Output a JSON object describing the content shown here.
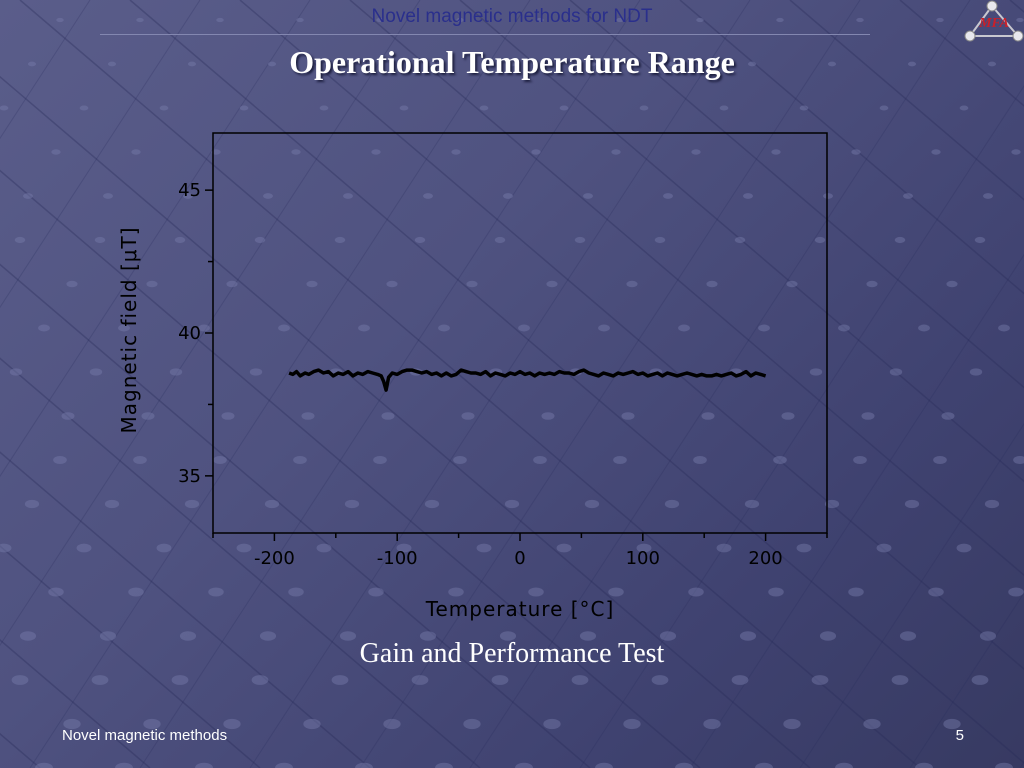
{
  "header": {
    "title": "Novel magnetic methods for NDT",
    "logo_text": "MFA"
  },
  "slide": {
    "title": "Operational Temperature Range",
    "caption": "Gain and Performance Test"
  },
  "footer": {
    "left": "Novel magnetic methods",
    "page_number": "5"
  },
  "colors": {
    "accent": "#2a2f8c",
    "line": "#000000",
    "logo_red": "#c8202a"
  },
  "chart_data": {
    "type": "line",
    "title": "",
    "xlabel": "Temperature [°C]",
    "ylabel": "Magnetic  field    [μT]",
    "xlim": [
      -250,
      250
    ],
    "ylim": [
      33,
      47
    ],
    "xticks": [
      -200,
      -100,
      0,
      100,
      200
    ],
    "xtick_labels": [
      "-200",
      "-100",
      "0",
      "100",
      "200"
    ],
    "yticks": [
      35,
      40,
      45
    ],
    "ytick_labels": [
      "35",
      "40",
      "45"
    ],
    "grid": false,
    "series": [
      {
        "x": [
          -188,
          -185,
          -182,
          -179,
          -175,
          -172,
          -168,
          -164,
          -160,
          -156,
          -152,
          -148,
          -144,
          -140,
          -136,
          -132,
          -128,
          -124,
          -120,
          -116,
          -113,
          -111,
          -109,
          -107,
          -104,
          -100,
          -96,
          -92,
          -88,
          -84,
          -80,
          -76,
          -72,
          -68,
          -64,
          -60,
          -56,
          -52,
          -48,
          -44,
          -40,
          -36,
          -32,
          -28,
          -24,
          -20,
          -16,
          -12,
          -8,
          -4,
          0,
          4,
          8,
          12,
          16,
          20,
          24,
          28,
          32,
          36,
          40,
          44,
          48,
          52,
          56,
          60,
          64,
          68,
          72,
          76,
          80,
          84,
          88,
          92,
          96,
          100,
          104,
          108,
          112,
          116,
          120,
          124,
          128,
          132,
          136,
          140,
          144,
          148,
          152,
          156,
          160,
          164,
          168,
          172,
          176,
          180,
          184,
          188,
          192,
          196,
          200
        ],
        "y": [
          38.6,
          38.55,
          38.65,
          38.5,
          38.6,
          38.55,
          38.65,
          38.7,
          38.6,
          38.65,
          38.5,
          38.6,
          38.55,
          38.65,
          38.5,
          38.6,
          38.55,
          38.65,
          38.6,
          38.55,
          38.5,
          38.3,
          38.0,
          38.45,
          38.6,
          38.55,
          38.65,
          38.7,
          38.7,
          38.65,
          38.6,
          38.65,
          38.55,
          38.6,
          38.5,
          38.6,
          38.5,
          38.55,
          38.7,
          38.65,
          38.6,
          38.6,
          38.55,
          38.65,
          38.5,
          38.6,
          38.55,
          38.5,
          38.6,
          38.55,
          38.65,
          38.55,
          38.6,
          38.5,
          38.6,
          38.55,
          38.6,
          38.55,
          38.65,
          38.6,
          38.6,
          38.55,
          38.65,
          38.7,
          38.6,
          38.55,
          38.5,
          38.6,
          38.55,
          38.5,
          38.6,
          38.55,
          38.6,
          38.65,
          38.55,
          38.6,
          38.5,
          38.55,
          38.6,
          38.5,
          38.6,
          38.55,
          38.5,
          38.55,
          38.6,
          38.55,
          38.5,
          38.55,
          38.5,
          38.5,
          38.55,
          38.5,
          38.55,
          38.6,
          38.5,
          38.55,
          38.65,
          38.5,
          38.6,
          38.55,
          38.5
        ]
      }
    ]
  }
}
